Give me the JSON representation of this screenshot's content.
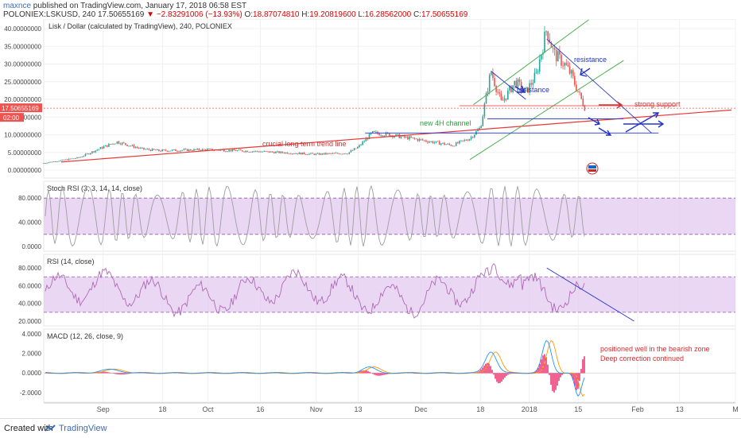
{
  "header": {
    "author": "maxnce",
    "published_text": "published on TradingView.com, January 17, 2018 06:58 EST",
    "symbol": "POLONIEX:LSKUSD, 240",
    "last": "17.50655169",
    "change": "−2.83291006 (−13.93%)",
    "open_label": "O:",
    "open": "18.87074810",
    "high_label": "H:",
    "high": "19.20819600",
    "low_label": "L:",
    "low": "16.28562000",
    "close_label": "C:",
    "close": "17.50655169"
  },
  "footer": {
    "created_with": "Created with",
    "brand": "TradingView"
  },
  "colors": {
    "candle_up": "#26a69a",
    "candle_down": "#ef5350",
    "trend_red": "#e53935",
    "channel_green": "#4caf50",
    "annot_blue": "#2233cc",
    "osc_fill": "#e1c6f0",
    "stoch_line": "#9e9e9e",
    "rsi_line": "#b06ab3",
    "macd_line": "#2196f3",
    "signal_line": "#ff9800",
    "hist": "#e91e63"
  },
  "chart_data": [
    {
      "type": "candlestick",
      "title": "Lisk / Dollar (calculated by TradingView), 240, POLONIEX",
      "x_ticks": [
        "Sep",
        "18",
        "Oct",
        "16",
        "Nov",
        "13",
        "Dec",
        "18",
        "2018",
        "15",
        "Feb",
        "13",
        "M"
      ],
      "y_ticks": [
        "40.00000000",
        "35.00000000",
        "30.00000000",
        "25.00000000",
        "20.00000000",
        "15.00000000",
        "10.00000000",
        "5.00000000",
        "0.00000000"
      ],
      "ylim": [
        0,
        40
      ],
      "price_label": "17.50655169",
      "time_label": "02:00",
      "series_keypoints": [
        {
          "date": "2017-08-15",
          "price": 2.0
        },
        {
          "date": "2017-08-25",
          "price": 3.5
        },
        {
          "date": "2017-09-01",
          "price": 6.5
        },
        {
          "date": "2017-09-05",
          "price": 8.0
        },
        {
          "date": "2017-09-12",
          "price": 6.0
        },
        {
          "date": "2017-09-17",
          "price": 5.5
        },
        {
          "date": "2017-10-01",
          "price": 5.8
        },
        {
          "date": "2017-10-15",
          "price": 5.3
        },
        {
          "date": "2017-11-01",
          "price": 4.5
        },
        {
          "date": "2017-11-10",
          "price": 4.8
        },
        {
          "date": "2017-11-13",
          "price": 6.5
        },
        {
          "date": "2017-11-17",
          "price": 10.5
        },
        {
          "date": "2017-11-22",
          "price": 10.0
        },
        {
          "date": "2017-12-01",
          "price": 8.5
        },
        {
          "date": "2017-12-10",
          "price": 7.0
        },
        {
          "date": "2017-12-15",
          "price": 9.0
        },
        {
          "date": "2017-12-18",
          "price": 12.0
        },
        {
          "date": "2017-12-21",
          "price": 28.0
        },
        {
          "date": "2017-12-24",
          "price": 19.0
        },
        {
          "date": "2017-12-28",
          "price": 25.0
        },
        {
          "date": "2017-12-31",
          "price": 22.0
        },
        {
          "date": "2018-01-03",
          "price": 27.0
        },
        {
          "date": "2018-01-06",
          "price": 40.0
        },
        {
          "date": "2018-01-08",
          "price": 33.0
        },
        {
          "date": "2018-01-11",
          "price": 30.0
        },
        {
          "date": "2018-01-13",
          "price": 27.0
        },
        {
          "date": "2018-01-15",
          "price": 22.0
        },
        {
          "date": "2018-01-17",
          "price": 17.5
        }
      ],
      "annotations": {
        "trend_text": "crucial long term trend line",
        "channel_text": "new 4H channel",
        "resistance_1": "resistance",
        "resistance_2": "resistance",
        "support_text": "strong support"
      }
    },
    {
      "type": "line",
      "title": "Stoch RSI (3, 3, 14, 14, close)",
      "y_ticks": [
        "80.0000",
        "40.0000",
        "0.0000"
      ],
      "ylim": [
        0,
        100
      ],
      "band": [
        20,
        80
      ]
    },
    {
      "type": "line",
      "title": "RSI (14, close)",
      "y_ticks": [
        "80.0000",
        "60.0000",
        "40.0000",
        "20.0000"
      ],
      "ylim": [
        20,
        90
      ],
      "band": [
        30,
        70
      ]
    },
    {
      "type": "line",
      "title": "MACD (12, 26, close, 9)",
      "y_ticks": [
        "4.0000",
        "2.0000",
        "0.0000",
        "-2.0000"
      ],
      "ylim": [
        -2.5,
        4
      ],
      "note_line1": "positioned well in the bearish zone",
      "note_line2": "Deep correction continued"
    }
  ]
}
